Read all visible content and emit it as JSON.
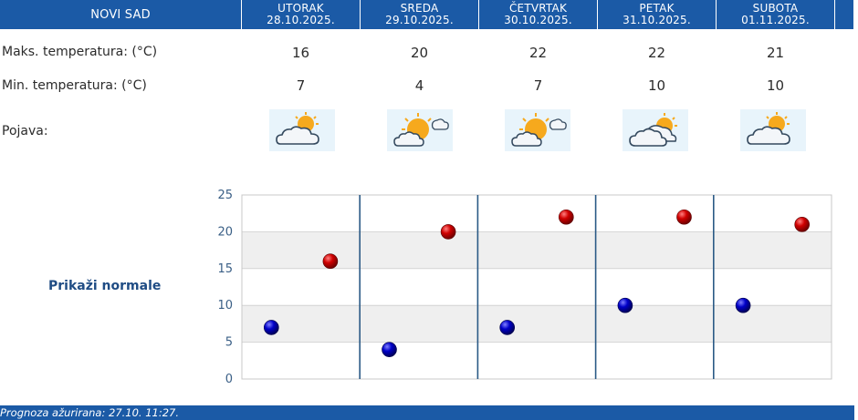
{
  "header": {
    "city": "NOVI SAD",
    "days": [
      {
        "day": "UTORAK",
        "date": "28.10.2025."
      },
      {
        "day": "SREDA",
        "date": "29.10.2025."
      },
      {
        "day": "ČETVRTAK",
        "date": "30.10.2025."
      },
      {
        "day": "PETAK",
        "date": "31.10.2025."
      },
      {
        "day": "SUBOTA",
        "date": "01.11.2025."
      }
    ]
  },
  "rows": {
    "max_label": "Maks. temperatura: (°C)",
    "min_label": "Min. temperatura: (°C)",
    "phenomenon_label": "Pojava:",
    "max_values": [
      "16",
      "20",
      "22",
      "22",
      "21"
    ],
    "min_values": [
      "7",
      "4",
      "7",
      "10",
      "10"
    ],
    "icons": [
      "partly-cloudy-icon",
      "sun-behind-cloud-icon",
      "sun-behind-cloud-icon",
      "cloudy-sun-icon",
      "partly-cloudy-icon"
    ]
  },
  "normals_link": "Prikaži normale",
  "footer": {
    "updated": "Prognoza ažurirana:  27.10. 11:27."
  },
  "colors": {
    "header_bg": "#1b5aa6",
    "max_marker": "#c40000",
    "min_marker": "#0a0aa8",
    "band": "#efefef"
  },
  "chart_data": {
    "type": "scatter",
    "categories": [
      "UTORAK",
      "SREDA",
      "ČETVRTAK",
      "PETAK",
      "SUBOTA"
    ],
    "series": [
      {
        "values": [
          7,
          4,
          7,
          10,
          10
        ]
      },
      {
        "values": [
          16,
          20,
          22,
          22,
          21
        ]
      }
    ],
    "ylim": [
      0,
      25
    ],
    "yticks": [
      "0",
      "5",
      "10",
      "15",
      "20",
      "25"
    ],
    "grid": true
  }
}
